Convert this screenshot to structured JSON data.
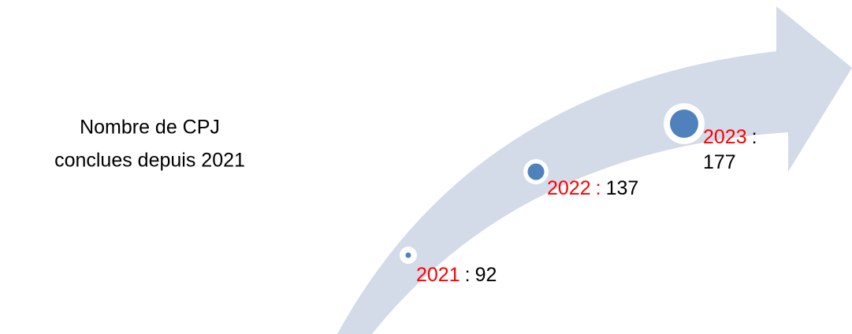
{
  "title": {
    "lines": [
      "Nombre de CPJ",
      "conclues depuis 2021"
    ]
  },
  "milestones": [
    {
      "year": "2021",
      "separator": ":",
      "separator_color": "#000000",
      "value": "92"
    },
    {
      "year": "2022",
      "separator": ":",
      "separator_color": "#ff0000",
      "value": "137"
    },
    {
      "year": "2023",
      "separator": ":",
      "separator_color": "#000000",
      "value": "177"
    }
  ]
}
